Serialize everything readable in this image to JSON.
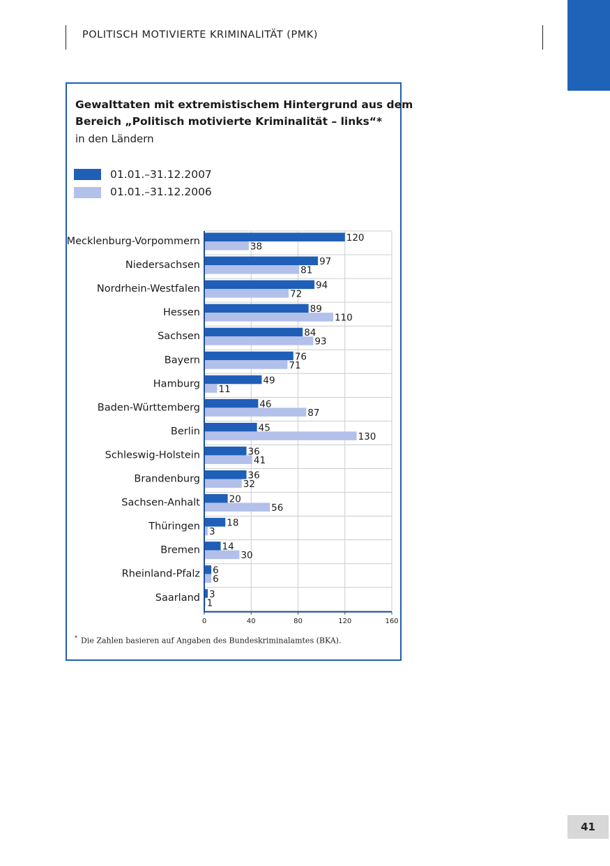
{
  "header": {
    "title": "POLITISCH MOTIVIERTE KRIMINALITÄT (PMK)"
  },
  "page_number": "41",
  "colors": {
    "accent": "#1f63b8",
    "series_2007": "#1f5fb8",
    "series_2006": "#b3c0ea",
    "grid": "#cccccc"
  },
  "footnote": {
    "marker": "*",
    "text": "Die Zahlen basieren auf Angaben des Bundeskriminalamtes (BKA)."
  },
  "chart_data": {
    "type": "bar",
    "orientation": "horizontal",
    "title_lines": [
      "Gewalttaten mit extremistischem Hintergrund aus dem",
      "Bereich „Politisch motivierte Kriminalität – links“*"
    ],
    "subtitle": "in den Ländern",
    "categories": [
      "Mecklenburg-Vorpommern",
      "Niedersachsen",
      "Nordrhein-Westfalen",
      "Hessen",
      "Sachsen",
      "Bayern",
      "Hamburg",
      "Baden-Württemberg",
      "Berlin",
      "Schleswig-Holstein",
      "Brandenburg",
      "Sachsen-Anhalt",
      "Thüringen",
      "Bremen",
      "Rheinland-Pfalz",
      "Saarland"
    ],
    "series": [
      {
        "name": "01.01.–31.12.2007",
        "color": "#1f5fb8",
        "values": [
          120,
          97,
          94,
          89,
          84,
          76,
          49,
          46,
          45,
          36,
          36,
          20,
          18,
          14,
          6,
          3
        ]
      },
      {
        "name": "01.01.–31.12.2006",
        "color": "#b3c0ea",
        "values": [
          38,
          81,
          72,
          110,
          93,
          71,
          11,
          87,
          130,
          41,
          32,
          56,
          3,
          30,
          6,
          1
        ]
      }
    ],
    "xlim": [
      0,
      160
    ],
    "xticks": [
      0,
      40,
      80,
      120,
      160
    ],
    "grid": true,
    "legend_placement": "top-left"
  }
}
